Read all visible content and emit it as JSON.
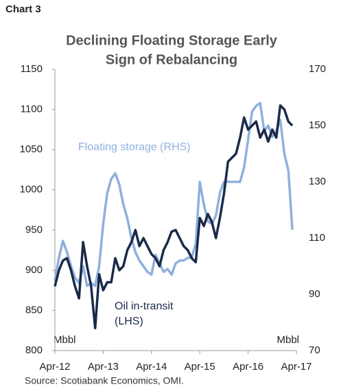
{
  "chart_data": {
    "type": "line",
    "label": "Chart 3",
    "title": [
      "Declining Floating Storage Early",
      "Sign of Rebalancing"
    ],
    "source": "Source: Scotiabank Economics, OMI.",
    "categories": [
      "Apr-12",
      null,
      null,
      null,
      null,
      null,
      null,
      null,
      null,
      null,
      null,
      null,
      "Apr-13",
      null,
      null,
      null,
      null,
      null,
      null,
      null,
      null,
      null,
      null,
      null,
      "Apr-14",
      null,
      null,
      null,
      null,
      null,
      null,
      null,
      null,
      null,
      null,
      null,
      "Apr-15",
      null,
      null,
      null,
      null,
      null,
      null,
      null,
      null,
      null,
      null,
      null,
      "Apr-16",
      null,
      null,
      null,
      null,
      null,
      null,
      null,
      null,
      null,
      null,
      null,
      "Apr-17"
    ],
    "series": [
      {
        "name": "Oil in-transit (LHS)",
        "color": "#1b2a4a",
        "axis": "y",
        "values": [
          880,
          900,
          912,
          915,
          900,
          880,
          865,
          935,
          905,
          880,
          828,
          895,
          875,
          885,
          885,
          915,
          900,
          905,
          925,
          935,
          950,
          930,
          940,
          930,
          920,
          915,
          905,
          925,
          935,
          948,
          950,
          940,
          930,
          925,
          915,
          910,
          965,
          955,
          970,
          960,
          940,
          965,
          995,
          1035,
          1040,
          1045,
          1065,
          1090,
          1075,
          1080,
          1085,
          1065,
          1075,
          1060,
          1075,
          1065,
          1105,
          1100,
          1085,
          1080,
          null
        ]
      },
      {
        "name": "Floating storage (RHS)",
        "color": "#8fb0dc",
        "axis": "y2",
        "values": [
          95,
          103,
          109,
          105,
          100,
          96,
          94,
          100,
          93,
          94,
          93,
          100,
          115,
          126,
          131,
          133,
          129,
          122,
          117,
          110,
          105,
          102,
          100,
          98,
          97,
          104,
          101,
          98,
          99,
          97,
          101,
          102,
          102,
          103,
          103,
          108,
          130,
          122,
          116,
          115,
          118,
          126,
          130,
          130,
          130,
          130,
          130,
          135,
          145,
          155,
          157,
          158,
          148,
          150,
          146,
          148,
          152,
          140,
          134,
          113,
          null
        ]
      }
    ],
    "annotations": [
      {
        "lines": [
          "Floating storage (RHS)"
        ],
        "series": 1
      },
      {
        "lines": [
          "Oil in-transit",
          "(LHS)"
        ],
        "series": 0
      }
    ],
    "y_unit": "Mbbl",
    "y2_unit": "Mbbl",
    "ylim": [
      800,
      1150
    ],
    "yticks": [
      800,
      850,
      900,
      950,
      1000,
      1050,
      1100,
      1150
    ],
    "y2lim": [
      70,
      170
    ],
    "y2ticks": [
      70,
      90,
      110,
      130,
      150,
      170
    ],
    "grid": false
  }
}
